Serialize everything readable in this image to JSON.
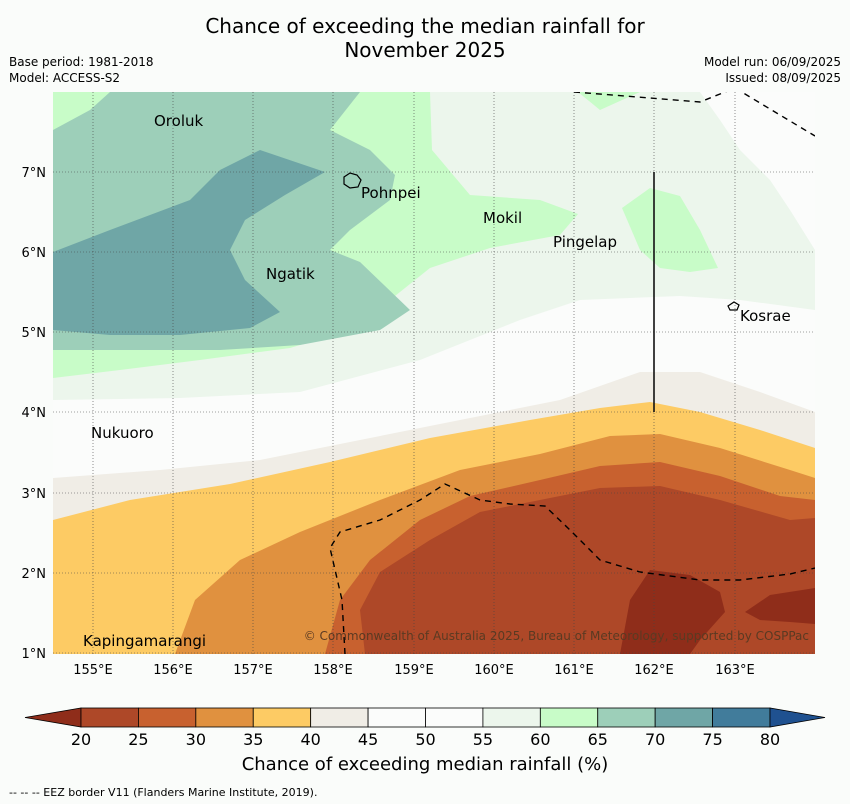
{
  "title": {
    "line1": "Chance of exceeding the median rainfall for",
    "line2": "November 2025"
  },
  "meta": {
    "base_period": "Base period: 1981-2018",
    "model": "Model: ACCESS-S2",
    "model_run": "Model run: 06/09/2025",
    "issued": "Issued: 08/09/2025"
  },
  "map": {
    "lon_ticks": [
      "155°E",
      "156°E",
      "157°E",
      "158°E",
      "159°E",
      "160°E",
      "161°E",
      "162°E",
      "163°E"
    ],
    "lat_ticks": [
      "1°N",
      "2°N",
      "3°N",
      "4°N",
      "5°N",
      "6°N",
      "7°N"
    ],
    "places": [
      {
        "name": "Oroluk"
      },
      {
        "name": "Pohnpei"
      },
      {
        "name": "Mokil"
      },
      {
        "name": "Pingelap"
      },
      {
        "name": "Ngatik"
      },
      {
        "name": "Kosrae"
      },
      {
        "name": "Nukuoro"
      },
      {
        "name": "Kapingamarangi"
      }
    ],
    "copyright": "© Commonwealth of Australia 2025, Bureau of Meteorology, supported by COSPPac"
  },
  "colorbar": {
    "ticks": [
      "20",
      "25",
      "30",
      "35",
      "40",
      "45",
      "50",
      "55",
      "60",
      "65",
      "70",
      "75",
      "80"
    ],
    "colors": [
      "#8f2d1a",
      "#ae4828",
      "#c8612f",
      "#e0913f",
      "#fdcb64",
      "#f0ede6",
      "#fbfcfb",
      "#fbfcfb",
      "#ecf6ec",
      "#c8fcc8",
      "#9dcfb9",
      "#6fa6a6",
      "#417c9b",
      "#1f5190"
    ],
    "label": "Chance of exceeding median rainfall (%)"
  },
  "footer": "--  --  -- EEZ border V11 (Flanders Marine Institute, 2019)."
}
